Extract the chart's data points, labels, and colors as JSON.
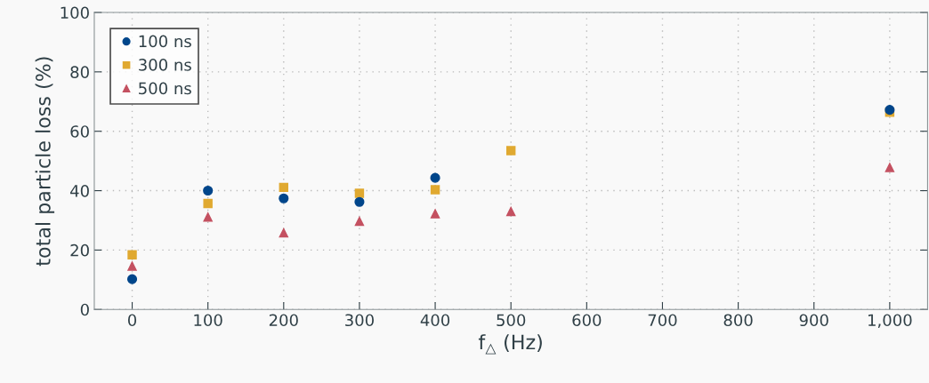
{
  "chart_data": {
    "type": "scatter",
    "xlabel": "f$_{△}$ (Hz)",
    "ylabel": "total particle loss (%)",
    "x": [
      0,
      100,
      200,
      300,
      400,
      500,
      1000
    ],
    "series": [
      {
        "name": "100 ns",
        "color": "#00468b",
        "marker": "circle",
        "values": [
          10.2,
          40.0,
          37.4,
          36.2,
          44.3,
          null,
          67.2
        ]
      },
      {
        "name": "300 ns",
        "color": "#e0a930",
        "marker": "square",
        "values": [
          18.4,
          35.7,
          41.1,
          39.1,
          40.3,
          53.5,
          66.4
        ]
      },
      {
        "name": "500 ns",
        "color": "#c45161",
        "marker": "triangle",
        "values": [
          14.6,
          31.1,
          25.8,
          29.7,
          32.2,
          33.0,
          47.8
        ]
      }
    ],
    "xlim": [
      -50,
      1050
    ],
    "xticks": [
      0,
      100,
      200,
      300,
      400,
      500,
      600,
      700,
      800,
      900,
      {
        "value": 1000,
        "label": "1,000"
      }
    ],
    "ylim": [
      0,
      100
    ],
    "yticks": [
      0,
      20,
      40,
      60,
      80,
      100
    ],
    "grid": true,
    "legend": "top left"
  }
}
